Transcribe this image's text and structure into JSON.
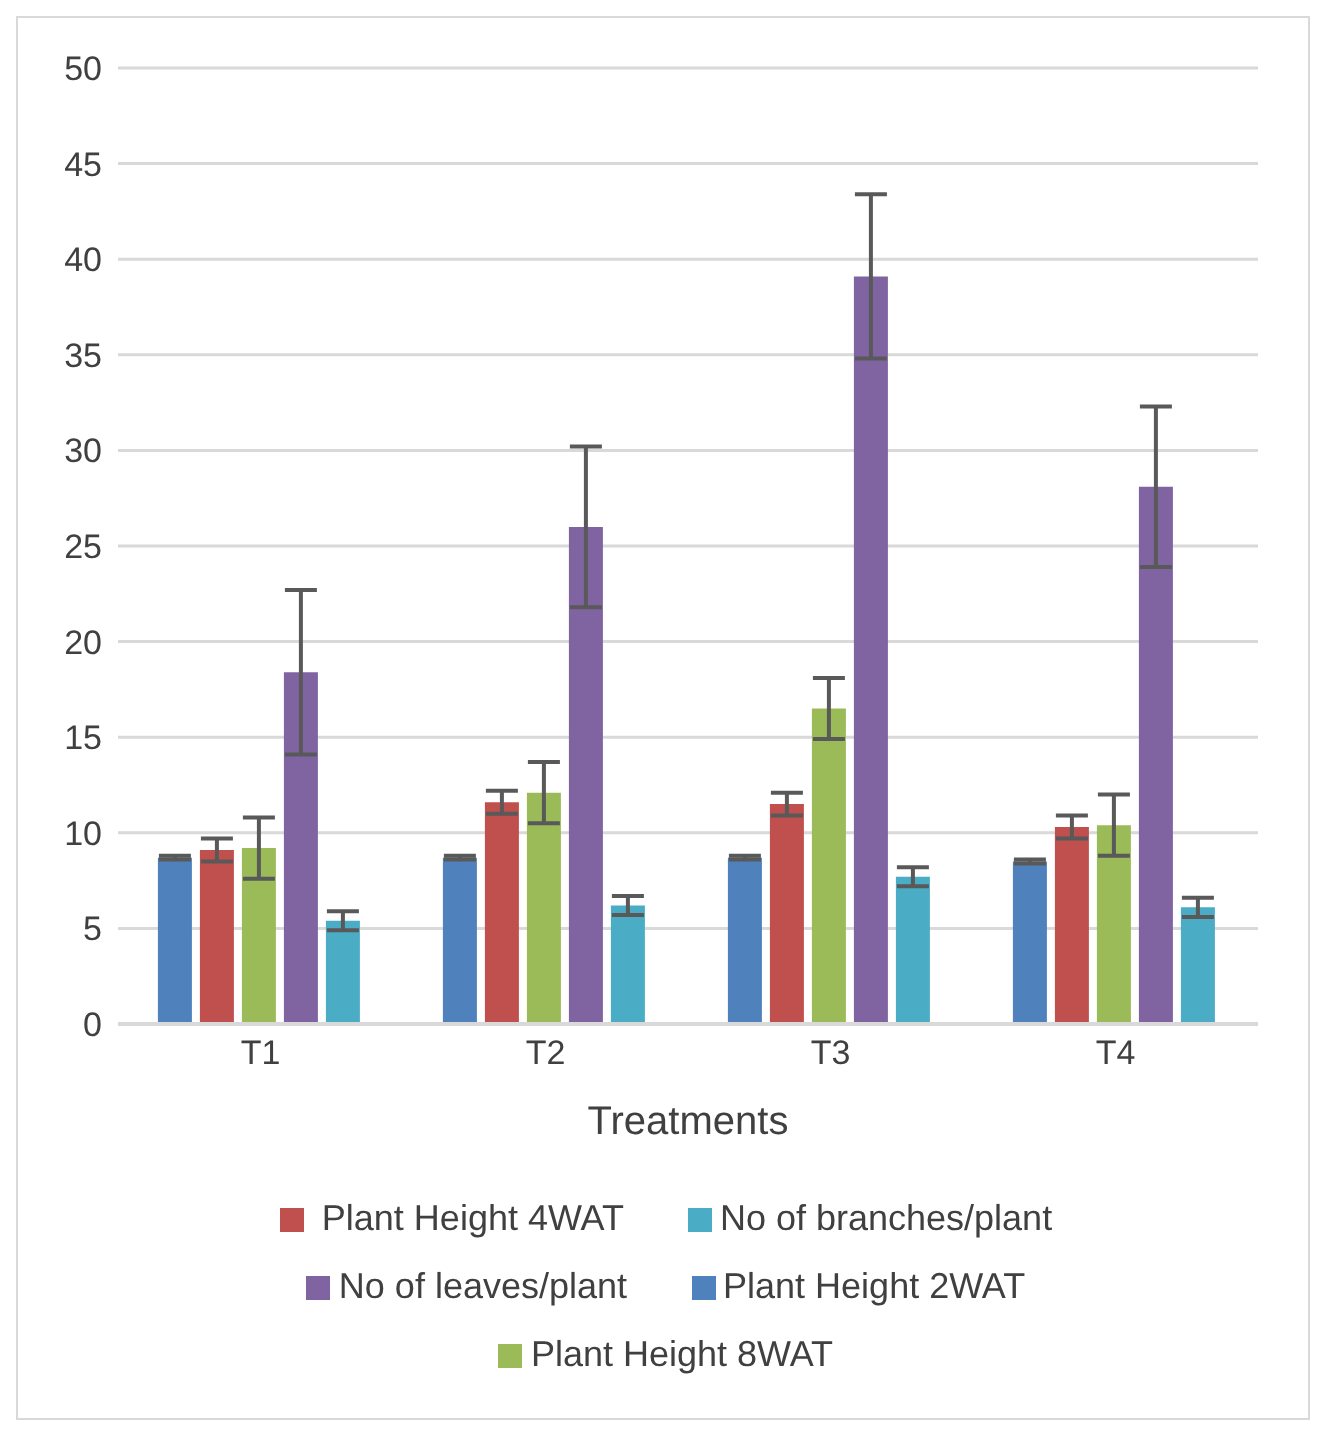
{
  "chart_data": {
    "type": "bar",
    "xlabel": "Treatments",
    "categories": [
      "T1",
      "T2",
      "T3",
      "T4"
    ],
    "series": [
      {
        "name": "Plant Height 2WAT",
        "color": "#4f81bd",
        "values": [
          8.7,
          8.7,
          8.7,
          8.5
        ],
        "errors": [
          0.1,
          0.1,
          0.1,
          0.1
        ]
      },
      {
        "name": " Plant Height 4WAT",
        "color": "#c0504d",
        "values": [
          9.1,
          11.6,
          11.5,
          10.3
        ],
        "errors": [
          0.6,
          0.6,
          0.6,
          0.6
        ]
      },
      {
        "name": "Plant Height 8WAT",
        "color": "#9bbb59",
        "values": [
          9.2,
          12.1,
          16.5,
          10.4
        ],
        "errors": [
          1.6,
          1.6,
          1.6,
          1.6
        ]
      },
      {
        "name": "No of leaves/plant",
        "color": "#8064a2",
        "values": [
          18.4,
          26,
          39.1,
          28.1
        ],
        "errors": [
          4.3,
          4.2,
          4.3,
          4.2
        ]
      },
      {
        "name": "No of branches/plant",
        "color": "#4bacc6",
        "values": [
          5.4,
          6.2,
          7.7,
          6.1
        ],
        "errors": [
          0.5,
          0.5,
          0.5,
          0.5
        ]
      }
    ],
    "ylim": [
      0,
      50
    ],
    "yticks": [
      0,
      5,
      10,
      15,
      20,
      25,
      30,
      35,
      40,
      45,
      50
    ],
    "grid": "y",
    "legend": "bottom"
  }
}
